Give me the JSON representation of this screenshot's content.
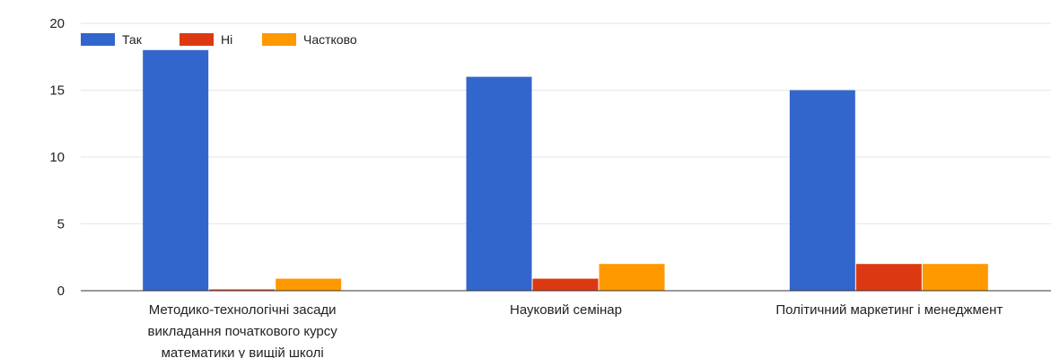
{
  "chart_data": {
    "type": "bar",
    "categories": [
      [
        "Методико-технологічні засади",
        "викладання початкового курсу",
        "математики у вищій школі"
      ],
      [
        "Науковий семінар"
      ],
      [
        "Політичний маркетинг і менеджмент"
      ]
    ],
    "series": [
      {
        "name": "Так",
        "color": "#3366cc",
        "values": [
          18,
          16,
          15
        ]
      },
      {
        "name": "Ні",
        "color": "#dc3912",
        "values": [
          0.1,
          0.9,
          2
        ]
      },
      {
        "name": "Частково",
        "color": "#ff9900",
        "values": [
          0.9,
          2,
          2
        ]
      }
    ],
    "yticks": [
      "0",
      "5",
      "10",
      "15",
      "20"
    ],
    "ylim": [
      0,
      20
    ],
    "grid": true,
    "legend_position": "top-left"
  }
}
